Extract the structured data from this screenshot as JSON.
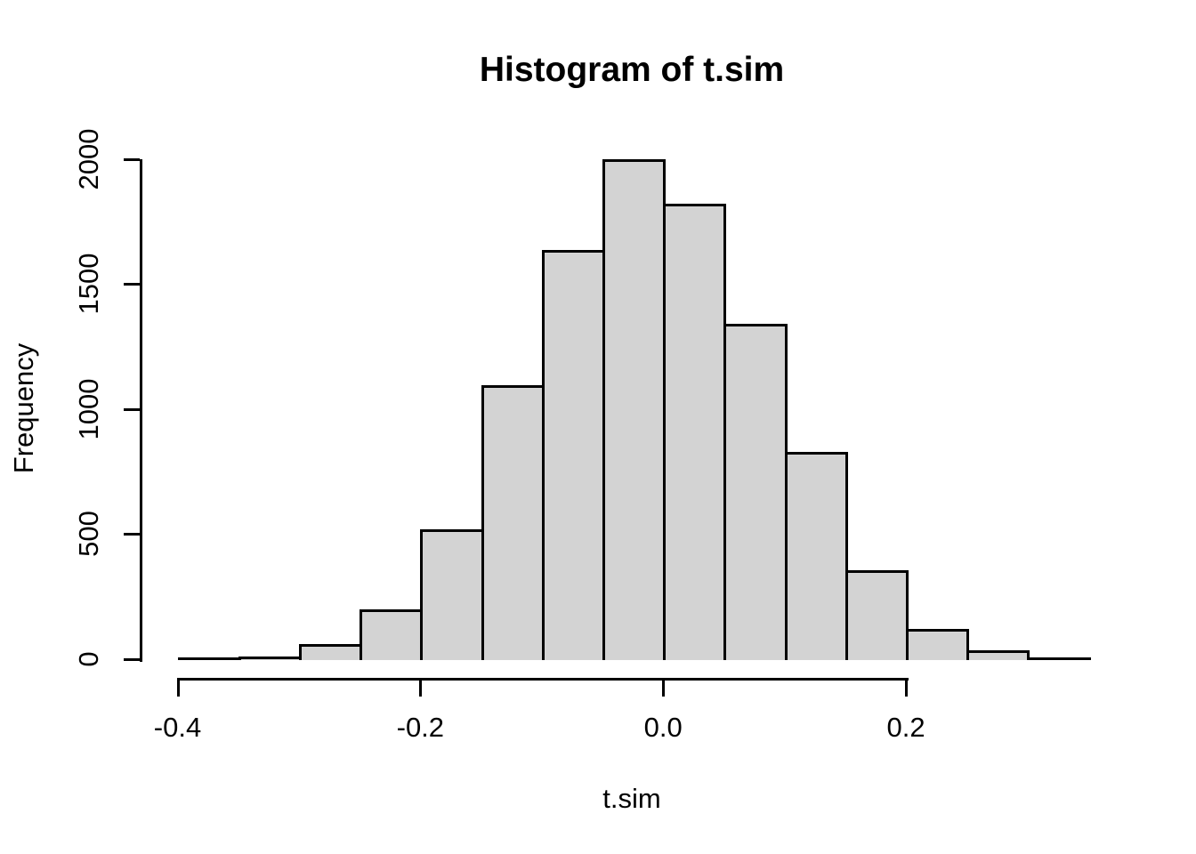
{
  "chart_data": {
    "type": "bar",
    "subtype": "histogram",
    "title": "Histogram of t.sim",
    "xlabel": "t.sim",
    "ylabel": "Frequency",
    "xlim": [
      -0.4,
      0.35
    ],
    "ylim": [
      0,
      2000
    ],
    "grid": false,
    "legend": null,
    "bin_width": 0.05,
    "bins": [
      {
        "from": -0.4,
        "to": -0.35,
        "count": 2
      },
      {
        "from": -0.35,
        "to": -0.3,
        "count": 10
      },
      {
        "from": -0.3,
        "to": -0.25,
        "count": 60
      },
      {
        "from": -0.25,
        "to": -0.2,
        "count": 200
      },
      {
        "from": -0.2,
        "to": -0.15,
        "count": 520
      },
      {
        "from": -0.15,
        "to": -0.1,
        "count": 1095
      },
      {
        "from": -0.1,
        "to": -0.05,
        "count": 1635
      },
      {
        "from": -0.05,
        "to": 0.0,
        "count": 2000
      },
      {
        "from": 0.0,
        "to": 0.05,
        "count": 1820
      },
      {
        "from": 0.05,
        "to": 0.1,
        "count": 1340
      },
      {
        "from": 0.1,
        "to": 0.15,
        "count": 830
      },
      {
        "from": 0.15,
        "to": 0.2,
        "count": 355
      },
      {
        "from": 0.2,
        "to": 0.25,
        "count": 120
      },
      {
        "from": 0.25,
        "to": 0.3,
        "count": 35
      },
      {
        "from": 0.3,
        "to": 0.35,
        "count": 2
      }
    ],
    "x_ticks": [
      {
        "value": -0.4,
        "label": "-0.4"
      },
      {
        "value": -0.2,
        "label": "-0.2"
      },
      {
        "value": 0.0,
        "label": "0.0"
      },
      {
        "value": 0.2,
        "label": "0.2"
      }
    ],
    "y_ticks": [
      {
        "value": 0,
        "label": "0"
      },
      {
        "value": 500,
        "label": "500"
      },
      {
        "value": 1000,
        "label": "1000"
      },
      {
        "value": 1500,
        "label": "1500"
      },
      {
        "value": 2000,
        "label": "2000"
      }
    ],
    "colors": {
      "bar_fill": "#d3d3d3",
      "bar_stroke": "#000000",
      "axis": "#000000",
      "text": "#000000",
      "background": "#ffffff"
    }
  }
}
